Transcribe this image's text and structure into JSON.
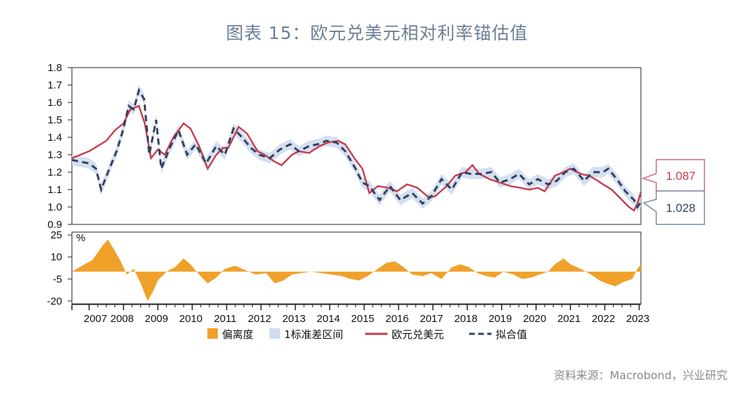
{
  "title": "图表 15：欧元兑美元相对利率锚估值",
  "source": "资料来源：Macrobond，兴业研究",
  "colors": {
    "eurusd": "#c73b4c",
    "fit": "#34425e",
    "band": "#cfdcee",
    "deviation": "#f0a12a",
    "title": "#6b7f96",
    "callout_top_border": "#d46a78",
    "callout_bottom_border": "#7c8aa2"
  },
  "chart_data": {
    "type": "line",
    "x_tick_labels": [
      "2007",
      "2008",
      "2009",
      "2010",
      "2011",
      "2012",
      "2013",
      "2014",
      "2015",
      "2016",
      "2017",
      "2018",
      "2019",
      "2020",
      "2021",
      "2022",
      "2023"
    ],
    "top_panel": {
      "ylim": [
        0.9,
        1.8
      ],
      "yticks": [
        "0.9",
        "1.0",
        "1.1",
        "1.2",
        "1.3",
        "1.4",
        "1.5",
        "1.6",
        "1.7",
        "1.8"
      ],
      "series": [
        {
          "name": "欧元兑美元",
          "style": "solid",
          "points": [
            [
              2006.5,
              1.28
            ],
            [
              2006.75,
              1.3
            ],
            [
              2007.0,
              1.32
            ],
            [
              2007.25,
              1.35
            ],
            [
              2007.5,
              1.38
            ],
            [
              2007.75,
              1.44
            ],
            [
              2008.0,
              1.48
            ],
            [
              2008.2,
              1.56
            ],
            [
              2008.45,
              1.58
            ],
            [
              2008.62,
              1.48
            ],
            [
              2008.8,
              1.28
            ],
            [
              2009.0,
              1.33
            ],
            [
              2009.2,
              1.3
            ],
            [
              2009.45,
              1.4
            ],
            [
              2009.75,
              1.48
            ],
            [
              2009.95,
              1.45
            ],
            [
              2010.2,
              1.35
            ],
            [
              2010.45,
              1.22
            ],
            [
              2010.7,
              1.3
            ],
            [
              2010.9,
              1.34
            ],
            [
              2011.05,
              1.34
            ],
            [
              2011.35,
              1.46
            ],
            [
              2011.6,
              1.42
            ],
            [
              2011.9,
              1.32
            ],
            [
              2012.1,
              1.3
            ],
            [
              2012.4,
              1.26
            ],
            [
              2012.6,
              1.24
            ],
            [
              2012.9,
              1.3
            ],
            [
              2013.1,
              1.32
            ],
            [
              2013.4,
              1.31
            ],
            [
              2013.7,
              1.35
            ],
            [
              2013.95,
              1.37
            ],
            [
              2014.25,
              1.38
            ],
            [
              2014.45,
              1.36
            ],
            [
              2014.75,
              1.27
            ],
            [
              2014.95,
              1.22
            ],
            [
              2015.15,
              1.08
            ],
            [
              2015.4,
              1.12
            ],
            [
              2015.7,
              1.11
            ],
            [
              2015.95,
              1.09
            ],
            [
              2016.25,
              1.13
            ],
            [
              2016.55,
              1.11
            ],
            [
              2016.85,
              1.06
            ],
            [
              2017.05,
              1.06
            ],
            [
              2017.4,
              1.12
            ],
            [
              2017.65,
              1.18
            ],
            [
              2017.95,
              1.2
            ],
            [
              2018.15,
              1.24
            ],
            [
              2018.35,
              1.19
            ],
            [
              2018.65,
              1.16
            ],
            [
              2018.95,
              1.14
            ],
            [
              2019.25,
              1.12
            ],
            [
              2019.55,
              1.11
            ],
            [
              2019.8,
              1.1
            ],
            [
              2020.05,
              1.11
            ],
            [
              2020.25,
              1.09
            ],
            [
              2020.55,
              1.18
            ],
            [
              2020.8,
              1.2
            ],
            [
              2021.0,
              1.22
            ],
            [
              2021.3,
              1.19
            ],
            [
              2021.55,
              1.18
            ],
            [
              2021.8,
              1.15
            ],
            [
              2021.95,
              1.13
            ],
            [
              2022.2,
              1.1
            ],
            [
              2022.45,
              1.05
            ],
            [
              2022.7,
              1.0
            ],
            [
              2022.85,
              0.98
            ],
            [
              2022.95,
              1.02
            ],
            [
              2023.05,
              1.087
            ]
          ]
        },
        {
          "name": "拟合值",
          "style": "dashed",
          "points": [
            [
              2006.5,
              1.27
            ],
            [
              2006.75,
              1.26
            ],
            [
              2007.0,
              1.25
            ],
            [
              2007.2,
              1.22
            ],
            [
              2007.35,
              1.1
            ],
            [
              2007.55,
              1.2
            ],
            [
              2007.8,
              1.32
            ],
            [
              2008.0,
              1.45
            ],
            [
              2008.15,
              1.58
            ],
            [
              2008.3,
              1.56
            ],
            [
              2008.45,
              1.67
            ],
            [
              2008.6,
              1.62
            ],
            [
              2008.75,
              1.3
            ],
            [
              2008.95,
              1.5
            ],
            [
              2009.1,
              1.22
            ],
            [
              2009.35,
              1.34
            ],
            [
              2009.6,
              1.44
            ],
            [
              2009.85,
              1.3
            ],
            [
              2010.1,
              1.36
            ],
            [
              2010.4,
              1.25
            ],
            [
              2010.7,
              1.35
            ],
            [
              2010.95,
              1.3
            ],
            [
              2011.2,
              1.45
            ],
            [
              2011.45,
              1.4
            ],
            [
              2011.7,
              1.34
            ],
            [
              2011.95,
              1.3
            ],
            [
              2012.25,
              1.28
            ],
            [
              2012.55,
              1.33
            ],
            [
              2012.85,
              1.36
            ],
            [
              2013.1,
              1.32
            ],
            [
              2013.4,
              1.35
            ],
            [
              2013.65,
              1.36
            ],
            [
              2013.9,
              1.38
            ],
            [
              2014.2,
              1.37
            ],
            [
              2014.45,
              1.32
            ],
            [
              2014.75,
              1.22
            ],
            [
              2014.95,
              1.14
            ],
            [
              2015.15,
              1.12
            ],
            [
              2015.45,
              1.04
            ],
            [
              2015.75,
              1.12
            ],
            [
              2016.05,
              1.04
            ],
            [
              2016.4,
              1.08
            ],
            [
              2016.7,
              1.02
            ],
            [
              2016.95,
              1.06
            ],
            [
              2017.25,
              1.16
            ],
            [
              2017.55,
              1.1
            ],
            [
              2017.85,
              1.2
            ],
            [
              2018.1,
              1.19
            ],
            [
              2018.4,
              1.19
            ],
            [
              2018.7,
              1.2
            ],
            [
              2018.95,
              1.14
            ],
            [
              2019.25,
              1.16
            ],
            [
              2019.5,
              1.19
            ],
            [
              2019.8,
              1.13
            ],
            [
              2020.05,
              1.16
            ],
            [
              2020.35,
              1.13
            ],
            [
              2020.6,
              1.15
            ],
            [
              2020.85,
              1.2
            ],
            [
              2021.1,
              1.22
            ],
            [
              2021.4,
              1.15
            ],
            [
              2021.65,
              1.2
            ],
            [
              2021.95,
              1.2
            ],
            [
              2022.1,
              1.22
            ],
            [
              2022.35,
              1.16
            ],
            [
              2022.6,
              1.09
            ],
            [
              2022.85,
              1.04
            ],
            [
              2022.95,
              1.0
            ],
            [
              2023.05,
              1.028
            ]
          ]
        }
      ],
      "band_name": "1标准差区间",
      "band_halfwidth": 0.03,
      "callouts": [
        {
          "label": "1.087",
          "series": "欧元兑美元"
        },
        {
          "label": "1.028",
          "series": "拟合值"
        }
      ]
    },
    "bottom_panel": {
      "unit_label": "%",
      "ylim": [
        -22,
        27
      ],
      "yticks": [
        "25",
        "10",
        "-5",
        "-20"
      ],
      "ytick_values": [
        25,
        10,
        -5,
        -20
      ],
      "series": {
        "name": "偏离度",
        "type": "area",
        "points": [
          [
            2006.5,
            0
          ],
          [
            2006.8,
            4
          ],
          [
            2007.1,
            8
          ],
          [
            2007.4,
            18
          ],
          [
            2007.55,
            22
          ],
          [
            2007.75,
            14
          ],
          [
            2007.9,
            8
          ],
          [
            2008.1,
            -2
          ],
          [
            2008.3,
            2
          ],
          [
            2008.5,
            -8
          ],
          [
            2008.7,
            -20
          ],
          [
            2008.85,
            -14
          ],
          [
            2009.0,
            -6
          ],
          [
            2009.25,
            0
          ],
          [
            2009.5,
            3
          ],
          [
            2009.75,
            9
          ],
          [
            2009.95,
            5
          ],
          [
            2010.2,
            -2
          ],
          [
            2010.45,
            -8
          ],
          [
            2010.7,
            -4
          ],
          [
            2010.95,
            2
          ],
          [
            2011.25,
            4
          ],
          [
            2011.55,
            1
          ],
          [
            2011.85,
            -2
          ],
          [
            2012.15,
            -1
          ],
          [
            2012.4,
            -8
          ],
          [
            2012.65,
            -6
          ],
          [
            2012.9,
            -2
          ],
          [
            2013.15,
            -1
          ],
          [
            2013.45,
            0
          ],
          [
            2013.75,
            -1
          ],
          [
            2014.05,
            -2
          ],
          [
            2014.35,
            -3
          ],
          [
            2014.6,
            -5
          ],
          [
            2014.85,
            -6
          ],
          [
            2015.1,
            -3
          ],
          [
            2015.4,
            2
          ],
          [
            2015.65,
            6
          ],
          [
            2015.9,
            7
          ],
          [
            2016.15,
            3
          ],
          [
            2016.4,
            -2
          ],
          [
            2016.7,
            -3
          ],
          [
            2016.95,
            -1
          ],
          [
            2017.25,
            -5
          ],
          [
            2017.55,
            3
          ],
          [
            2017.8,
            5
          ],
          [
            2018.05,
            3
          ],
          [
            2018.3,
            -1
          ],
          [
            2018.55,
            -3
          ],
          [
            2018.8,
            -4
          ],
          [
            2019.05,
            0
          ],
          [
            2019.35,
            -2
          ],
          [
            2019.6,
            -5
          ],
          [
            2019.85,
            -4
          ],
          [
            2020.1,
            -2
          ],
          [
            2020.35,
            0
          ],
          [
            2020.55,
            5
          ],
          [
            2020.8,
            9
          ],
          [
            2021.0,
            5
          ],
          [
            2021.3,
            2
          ],
          [
            2021.6,
            -2
          ],
          [
            2021.85,
            -6
          ],
          [
            2022.05,
            -8
          ],
          [
            2022.3,
            -10
          ],
          [
            2022.55,
            -7
          ],
          [
            2022.8,
            -5
          ],
          [
            2022.95,
            2
          ],
          [
            2023.05,
            5
          ]
        ]
      }
    },
    "legend": [
      "偏离度",
      "1标准差区间",
      "欧元兑美元",
      "拟合值"
    ]
  }
}
